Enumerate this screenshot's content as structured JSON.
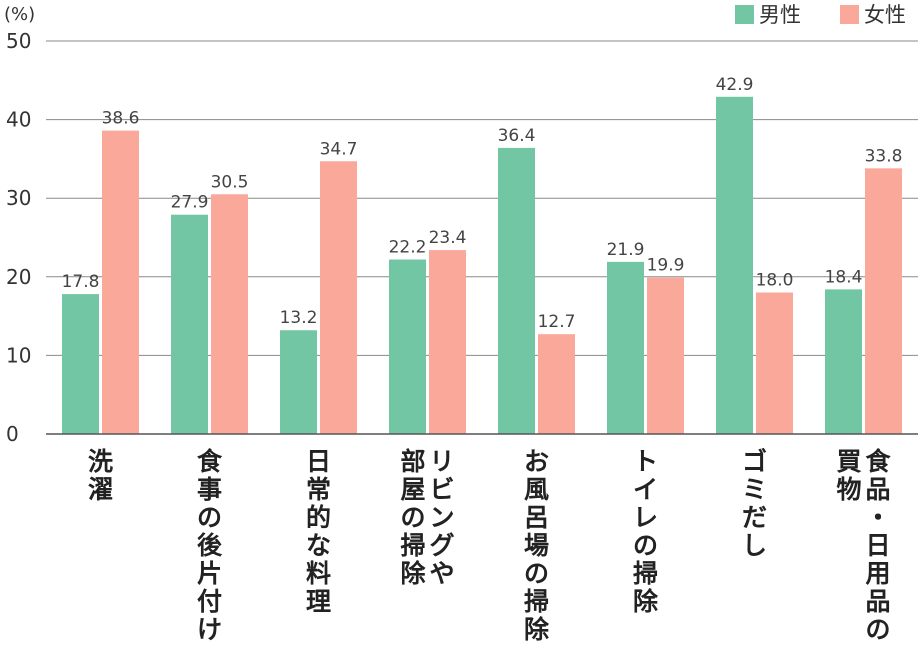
{
  "chart_data": {
    "type": "bar",
    "unit_label": "(%)",
    "categories": [
      [
        "洗濯"
      ],
      [
        "食事の後片付け"
      ],
      [
        "日常的な料理"
      ],
      [
        "リビングや",
        "部屋の掃除"
      ],
      [
        "お風呂場の掃除"
      ],
      [
        "トイレの掃除"
      ],
      [
        "ゴミだし"
      ],
      [
        "食品・日用品の",
        "買物"
      ]
    ],
    "series": [
      {
        "name": "男性",
        "color": "#73c6a3",
        "values": [
          17.8,
          27.9,
          13.2,
          22.2,
          36.4,
          21.9,
          42.9,
          18.4
        ]
      },
      {
        "name": "女性",
        "color": "#f9a89a",
        "values": [
          38.6,
          30.5,
          34.7,
          23.4,
          12.7,
          19.9,
          18.0,
          33.8
        ]
      }
    ],
    "value_labels": [
      [
        "17.8",
        "27.9",
        "13.2",
        "22.2",
        "36.4",
        "21.9",
        "42.9",
        "18.4"
      ],
      [
        "38.6",
        "30.5",
        "34.7",
        "23.4",
        "12.7",
        "19.9",
        "18.0",
        "33.8"
      ]
    ],
    "yticks": [
      0,
      10,
      20,
      30,
      40,
      50
    ],
    "ylim": [
      0,
      50
    ],
    "grid": true,
    "legend_position": "top-right"
  }
}
